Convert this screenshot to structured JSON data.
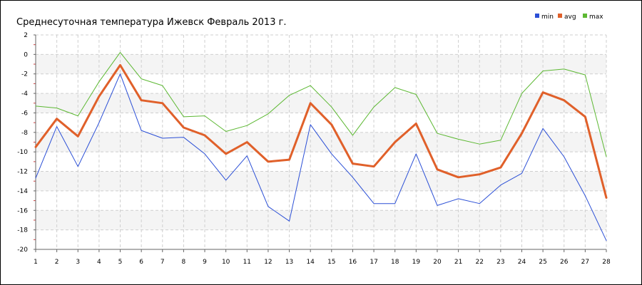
{
  "chart_data": {
    "type": "line",
    "title": "Среднесуточная температура Ижевск  Февраль 2013 г.",
    "xlabel": "",
    "ylabel": "",
    "x": [
      1,
      2,
      3,
      4,
      5,
      6,
      7,
      8,
      9,
      10,
      11,
      12,
      13,
      14,
      15,
      16,
      17,
      18,
      19,
      20,
      21,
      22,
      23,
      24,
      25,
      26,
      27,
      28
    ],
    "xlim": [
      1,
      28
    ],
    "ylim": [
      -20,
      2
    ],
    "yticks": [
      2,
      0,
      -2,
      -4,
      -6,
      -8,
      -10,
      -12,
      -14,
      -16,
      -18,
      -20
    ],
    "grid": true,
    "legend": "top-right",
    "series": [
      {
        "name": "min",
        "color": "#2b4fd6",
        "width": 1,
        "values": [
          -12.7,
          -7.4,
          -11.5,
          -7.0,
          -2.0,
          -7.8,
          -8.6,
          -8.5,
          -10.2,
          -12.9,
          -10.4,
          -15.6,
          -17.1,
          -7.2,
          -10.2,
          -12.6,
          -15.3,
          -15.3,
          -10.2,
          -15.5,
          -14.8,
          -15.3,
          -13.4,
          -12.2,
          -7.6,
          -10.5,
          -14.5,
          -19.1
        ]
      },
      {
        "name": "avg",
        "color": "#e0602a",
        "width": 3,
        "values": [
          -9.5,
          -6.6,
          -8.4,
          -4.3,
          -1.1,
          -4.7,
          -5.0,
          -7.5,
          -8.3,
          -10.2,
          -9.0,
          -11.0,
          -10.8,
          -5.0,
          -7.2,
          -11.2,
          -11.5,
          -9.0,
          -7.1,
          -11.8,
          -12.6,
          -12.3,
          -11.6,
          -8.1,
          -3.9,
          -4.7,
          -6.4,
          -14.7
        ]
      },
      {
        "name": "max",
        "color": "#5cb832",
        "width": 1,
        "values": [
          -5.3,
          -5.5,
          -6.3,
          -2.8,
          0.2,
          -2.5,
          -3.2,
          -6.4,
          -6.3,
          -7.9,
          -7.3,
          -6.1,
          -4.2,
          -3.2,
          -5.4,
          -8.3,
          -5.4,
          -3.4,
          -4.1,
          -8.1,
          -8.7,
          -9.2,
          -8.8,
          -4.0,
          -1.7,
          -1.5,
          -2.1,
          -10.5
        ]
      }
    ]
  }
}
